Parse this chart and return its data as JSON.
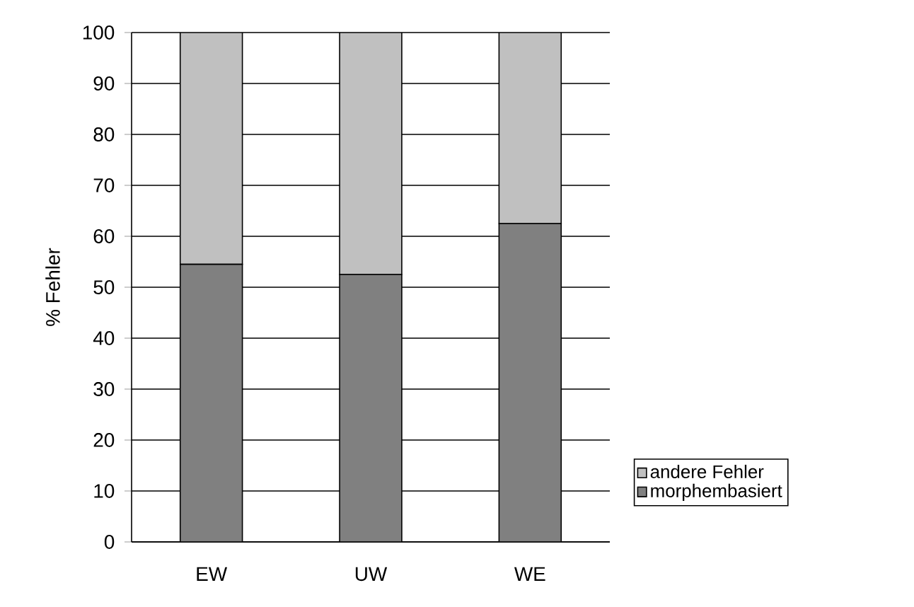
{
  "chart_data": {
    "type": "bar",
    "stacked": true,
    "ylabel": "% Fehler",
    "categories": [
      "EW",
      "UW",
      "WE"
    ],
    "series": [
      {
        "name": "morphembasiert",
        "color": "#808080",
        "values": [
          54.5,
          52.5,
          62.5
        ]
      },
      {
        "name": "andere Fehler",
        "color": "#c0c0c0",
        "values": [
          45.5,
          47.5,
          37.5
        ]
      }
    ],
    "ylim": [
      0,
      100
    ],
    "yticks": [
      0,
      10,
      20,
      30,
      40,
      50,
      60,
      70,
      80,
      90,
      100
    ],
    "grid": "y",
    "legend": "right"
  }
}
